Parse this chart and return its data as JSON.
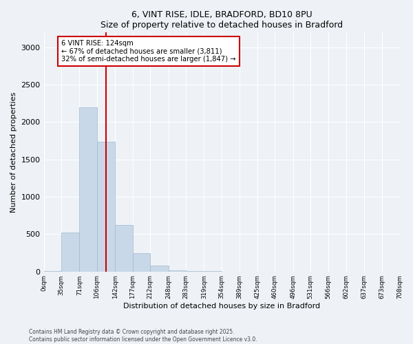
{
  "title": "6, VINT RISE, IDLE, BRADFORD, BD10 8PU",
  "subtitle": "Size of property relative to detached houses in Bradford",
  "xlabel": "Distribution of detached houses by size in Bradford",
  "ylabel": "Number of detached properties",
  "bar_color": "#c8d8e8",
  "bar_edge_color": "#a0b8d0",
  "vline_color": "#cc0000",
  "vline_x": 124,
  "annotation_text": "6 VINT RISE: 124sqm\n← 67% of detached houses are smaller (3,811)\n32% of semi-detached houses are larger (1,847) →",
  "annotation_box_color": "#ffffff",
  "annotation_box_edge": "#cc0000",
  "bins": [
    0,
    35,
    71,
    106,
    142,
    177,
    212,
    248,
    283,
    319,
    354,
    389,
    425,
    460,
    496,
    531,
    566,
    602,
    637,
    673,
    708
  ],
  "bar_heights": [
    3,
    519,
    2194,
    1735,
    627,
    246,
    84,
    20,
    5,
    2,
    1,
    0,
    0,
    0,
    0,
    0,
    0,
    0,
    0,
    0
  ],
  "ylim": [
    0,
    3200
  ],
  "yticks": [
    0,
    500,
    1000,
    1500,
    2000,
    2500,
    3000
  ],
  "footnote": "Contains HM Land Registry data © Crown copyright and database right 2025.\nContains public sector information licensed under the Open Government Licence v3.0.",
  "bg_color": "#eef2f6",
  "plot_bg_color": "#eef2f6"
}
